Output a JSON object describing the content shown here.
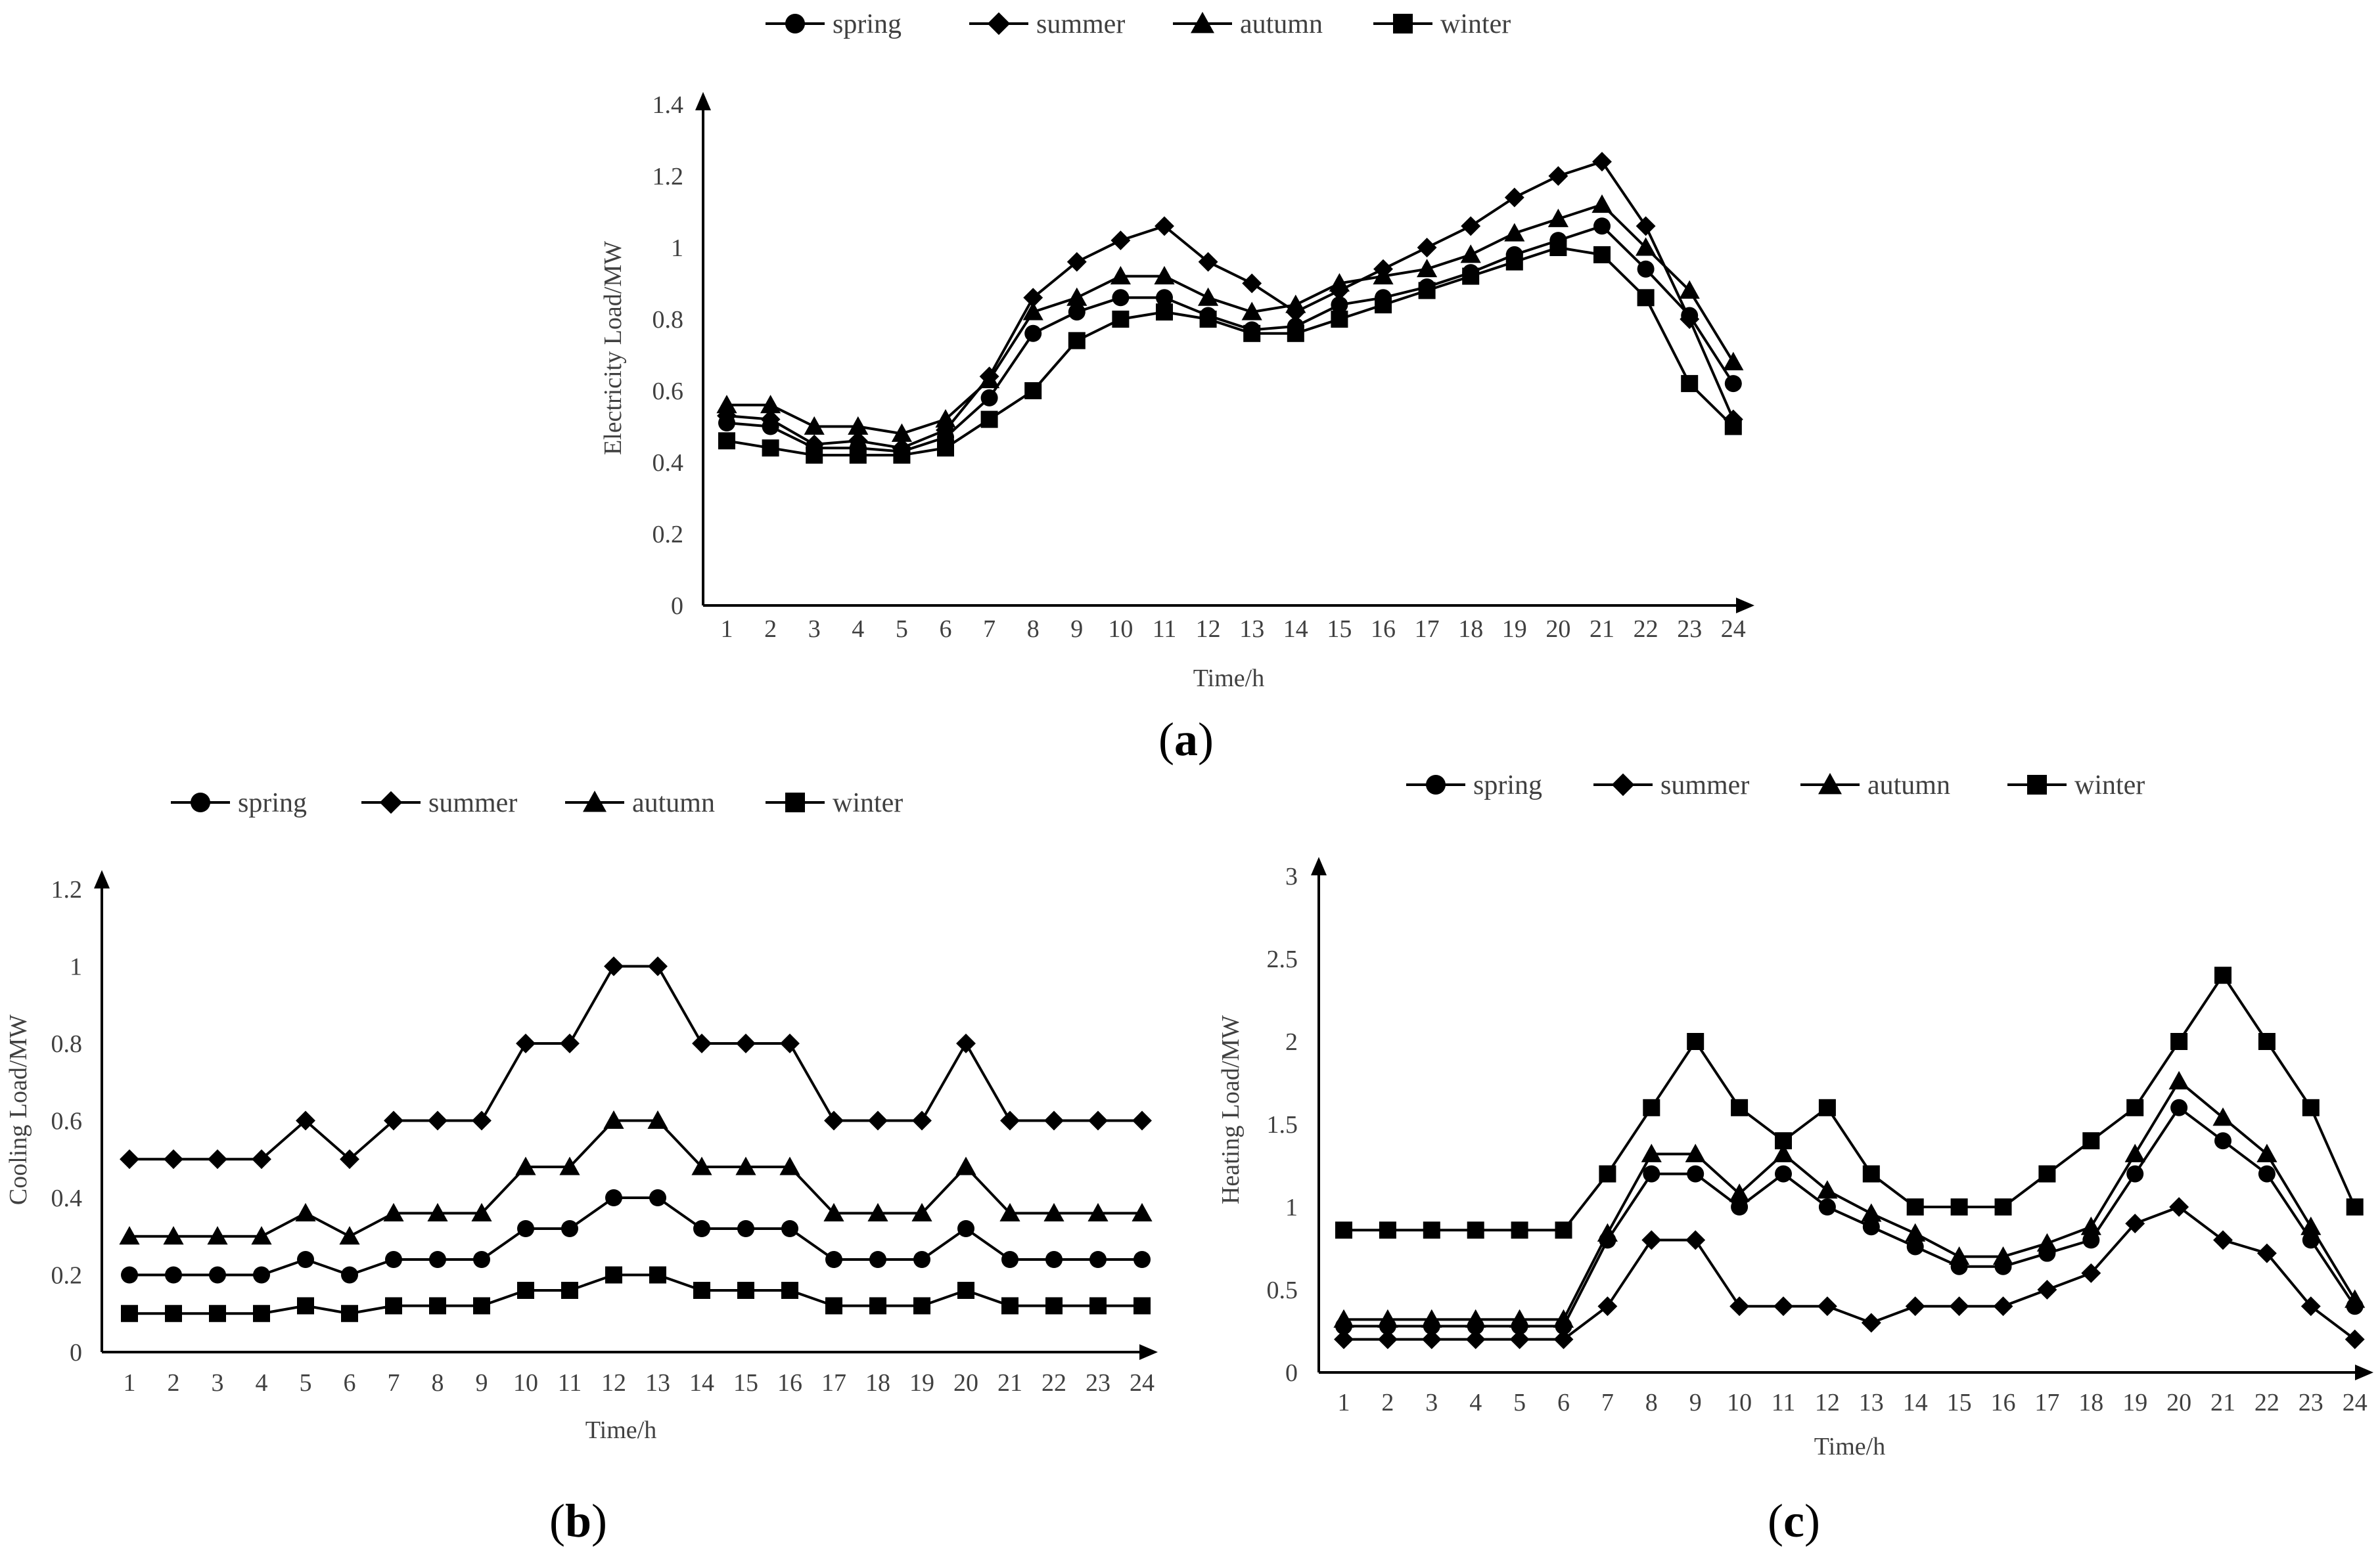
{
  "colors": {
    "line": "#000000",
    "text": "#404040",
    "axis": "#000000"
  },
  "panel_labels": {
    "a": {
      "open": "(",
      "letter": "a",
      "close": ")"
    },
    "b": {
      "open": "(",
      "letter": "b",
      "close": ")"
    },
    "c": {
      "open": "(",
      "letter": "c",
      "close": ")"
    }
  },
  "chart_data": [
    {
      "id": "a",
      "type": "line",
      "title": "",
      "xlabel": "Time/h",
      "ylabel": "Electricity Load/MW",
      "legend_position": "top",
      "grid": false,
      "ylim": [
        0,
        1.4
      ],
      "yticks": [
        "0",
        "0.2",
        "0.4",
        "0.6",
        "0.8",
        "1",
        "1.2",
        "1.4"
      ],
      "x": [
        "1",
        "2",
        "3",
        "4",
        "5",
        "6",
        "7",
        "8",
        "9",
        "10",
        "11",
        "12",
        "13",
        "14",
        "15",
        "16",
        "17",
        "18",
        "19",
        "20",
        "21",
        "22",
        "23",
        "24"
      ],
      "series": [
        {
          "name": "spring",
          "marker": "circle",
          "values": [
            0.51,
            0.5,
            0.44,
            0.44,
            0.43,
            0.47,
            0.58,
            0.76,
            0.82,
            0.86,
            0.86,
            0.81,
            0.77,
            0.78,
            0.84,
            0.86,
            0.89,
            0.93,
            0.98,
            1.02,
            1.06,
            0.94,
            0.81,
            0.62
          ]
        },
        {
          "name": "summer",
          "marker": "diamond",
          "values": [
            0.53,
            0.52,
            0.45,
            0.46,
            0.44,
            0.49,
            0.64,
            0.86,
            0.96,
            1.02,
            1.06,
            0.96,
            0.9,
            0.82,
            0.88,
            0.94,
            1.0,
            1.06,
            1.14,
            1.2,
            1.24,
            1.06,
            0.8,
            0.52
          ]
        },
        {
          "name": "autumn",
          "marker": "triangle",
          "values": [
            0.56,
            0.56,
            0.5,
            0.5,
            0.48,
            0.52,
            0.63,
            0.82,
            0.86,
            0.92,
            0.92,
            0.86,
            0.82,
            0.84,
            0.9,
            0.92,
            0.94,
            0.98,
            1.04,
            1.08,
            1.12,
            1.0,
            0.88,
            0.68
          ]
        },
        {
          "name": "winter",
          "marker": "square",
          "values": [
            0.46,
            0.44,
            0.42,
            0.42,
            0.42,
            0.44,
            0.52,
            0.6,
            0.74,
            0.8,
            0.82,
            0.8,
            0.76,
            0.76,
            0.8,
            0.84,
            0.88,
            0.92,
            0.96,
            1.0,
            0.98,
            0.86,
            0.62,
            0.5
          ]
        }
      ]
    },
    {
      "id": "b",
      "type": "line",
      "title": "",
      "xlabel": "Time/h",
      "ylabel": "Cooling Load/MW",
      "legend_position": "top",
      "grid": false,
      "ylim": [
        0,
        1.2
      ],
      "yticks": [
        "0",
        "0.2",
        "0.4",
        "0.6",
        "0.8",
        "1",
        "1.2"
      ],
      "x": [
        "1",
        "2",
        "3",
        "4",
        "5",
        "6",
        "7",
        "8",
        "9",
        "10",
        "11",
        "12",
        "13",
        "14",
        "15",
        "16",
        "17",
        "18",
        "19",
        "20",
        "21",
        "22",
        "23",
        "24"
      ],
      "series": [
        {
          "name": "spring",
          "marker": "circle",
          "values": [
            0.2,
            0.2,
            0.2,
            0.2,
            0.24,
            0.2,
            0.24,
            0.24,
            0.24,
            0.32,
            0.32,
            0.4,
            0.4,
            0.32,
            0.32,
            0.32,
            0.24,
            0.24,
            0.24,
            0.32,
            0.24,
            0.24,
            0.24,
            0.24
          ]
        },
        {
          "name": "summer",
          "marker": "diamond",
          "values": [
            0.5,
            0.5,
            0.5,
            0.5,
            0.6,
            0.5,
            0.6,
            0.6,
            0.6,
            0.8,
            0.8,
            1.0,
            1.0,
            0.8,
            0.8,
            0.8,
            0.6,
            0.6,
            0.6,
            0.8,
            0.6,
            0.6,
            0.6,
            0.6
          ]
        },
        {
          "name": "autumn",
          "marker": "triangle",
          "values": [
            0.3,
            0.3,
            0.3,
            0.3,
            0.36,
            0.3,
            0.36,
            0.36,
            0.36,
            0.48,
            0.48,
            0.6,
            0.6,
            0.48,
            0.48,
            0.48,
            0.36,
            0.36,
            0.36,
            0.48,
            0.36,
            0.36,
            0.36,
            0.36
          ]
        },
        {
          "name": "winter",
          "marker": "square",
          "values": [
            0.1,
            0.1,
            0.1,
            0.1,
            0.12,
            0.1,
            0.12,
            0.12,
            0.12,
            0.16,
            0.16,
            0.2,
            0.2,
            0.16,
            0.16,
            0.16,
            0.12,
            0.12,
            0.12,
            0.16,
            0.12,
            0.12,
            0.12,
            0.12
          ]
        }
      ]
    },
    {
      "id": "c",
      "type": "line",
      "title": "",
      "xlabel": "Time/h",
      "ylabel": "Heating Load/MW",
      "legend_position": "top",
      "grid": false,
      "ylim": [
        0,
        3
      ],
      "yticks": [
        "0",
        "0.5",
        "1",
        "1.5",
        "2",
        "2.5",
        "3"
      ],
      "x": [
        "1",
        "2",
        "3",
        "4",
        "5",
        "6",
        "7",
        "8",
        "9",
        "10",
        "11",
        "12",
        "13",
        "14",
        "15",
        "16",
        "17",
        "18",
        "19",
        "20",
        "21",
        "22",
        "23",
        "24"
      ],
      "series": [
        {
          "name": "spring",
          "marker": "circle",
          "values": [
            0.28,
            0.28,
            0.28,
            0.28,
            0.28,
            0.28,
            0.8,
            1.2,
            1.2,
            1.0,
            1.2,
            1.0,
            0.88,
            0.76,
            0.64,
            0.64,
            0.72,
            0.8,
            1.2,
            1.6,
            1.4,
            1.2,
            0.8,
            0.4
          ]
        },
        {
          "name": "summer",
          "marker": "diamond",
          "values": [
            0.2,
            0.2,
            0.2,
            0.2,
            0.2,
            0.2,
            0.4,
            0.8,
            0.8,
            0.4,
            0.4,
            0.4,
            0.3,
            0.4,
            0.4,
            0.4,
            0.5,
            0.6,
            0.9,
            1.0,
            0.8,
            0.72,
            0.4,
            0.2
          ]
        },
        {
          "name": "autumn",
          "marker": "triangle",
          "values": [
            0.32,
            0.32,
            0.32,
            0.32,
            0.32,
            0.32,
            0.84,
            1.32,
            1.32,
            1.08,
            1.32,
            1.1,
            0.96,
            0.84,
            0.7,
            0.7,
            0.78,
            0.88,
            1.32,
            1.76,
            1.54,
            1.32,
            0.88,
            0.44
          ]
        },
        {
          "name": "winter",
          "marker": "square",
          "values": [
            0.86,
            0.86,
            0.86,
            0.86,
            0.86,
            0.86,
            1.2,
            1.6,
            2.0,
            1.6,
            1.4,
            1.6,
            1.2,
            1.0,
            1.0,
            1.0,
            1.2,
            1.4,
            1.6,
            2.0,
            2.4,
            2.0,
            1.6,
            1.0
          ]
        }
      ]
    }
  ]
}
